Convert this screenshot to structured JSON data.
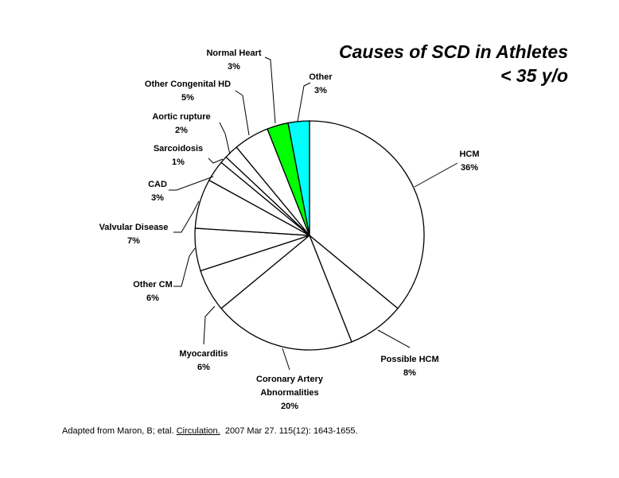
{
  "chart_data": {
    "type": "pie",
    "title": "Causes of SCD in Athletes",
    "subtitle": "< 35 y/o",
    "start": "12 o'clock",
    "direction": "clockwise",
    "slices": [
      {
        "label": "HCM",
        "value": 36,
        "value_label": "36%",
        "color": "#ffffff"
      },
      {
        "label": "Possible HCM",
        "value": 8,
        "value_label": "8%",
        "color": "#ffffff"
      },
      {
        "label": "Coronary Artery Abnormalities",
        "value": 20,
        "value_label": "20%",
        "color": "#ffffff"
      },
      {
        "label": "Myocarditis",
        "value": 6,
        "value_label": "6%",
        "color": "#ffffff"
      },
      {
        "label": "Other CM",
        "value": 6,
        "value_label": "6%",
        "color": "#ffffff"
      },
      {
        "label": "Valvular Disease",
        "value": 7,
        "value_label": "7%",
        "color": "#ffffff"
      },
      {
        "label": "CAD",
        "value": 3,
        "value_label": "3%",
        "color": "#ffffff"
      },
      {
        "label": "Sarcoidosis",
        "value": 1,
        "value_label": "1%",
        "color": "#ffffff"
      },
      {
        "label": "Aortic rupture",
        "value": 2,
        "value_label": "2%",
        "color": "#ffffff"
      },
      {
        "label": "Other Congenital HD",
        "value": 5,
        "value_label": "5%",
        "color": "#ffffff"
      },
      {
        "label": "Normal Heart",
        "value": 3,
        "value_label": "3%",
        "color": "#00ff00"
      },
      {
        "label": "Other",
        "value": 3,
        "value_label": "3%",
        "color": "#00ffff"
      }
    ]
  },
  "footnote": {
    "prefix": "Adapted from Maron, B; etal.",
    "journal": "Circulation.",
    "suffix": "2007 Mar 27. 115(12): 1643-1655."
  }
}
